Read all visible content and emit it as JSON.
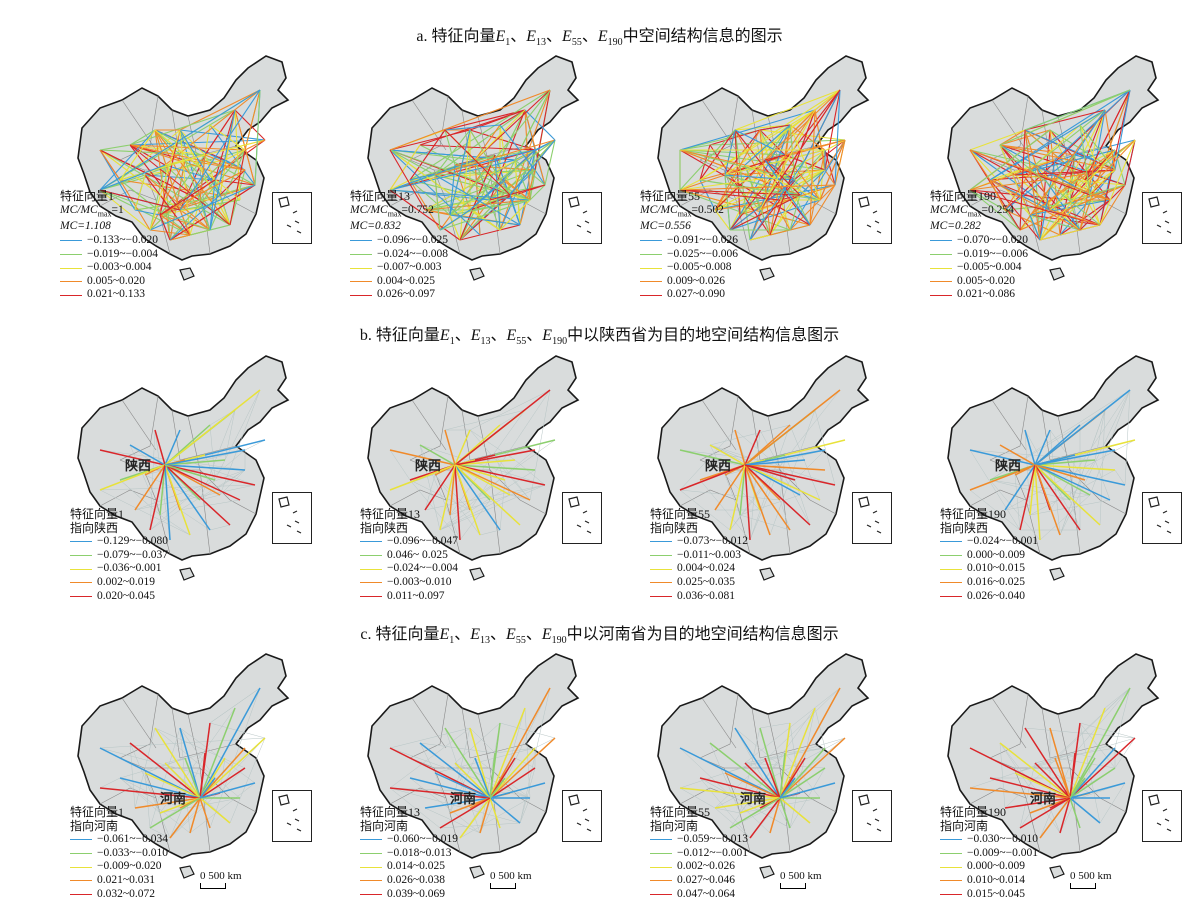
{
  "colors": {
    "class1": "#3a9ad9",
    "class2": "#8ccf6e",
    "class3": "#e8e23a",
    "class4": "#f08a2a",
    "class5": "#d9262a",
    "land": "#d9dcdc",
    "border": "#1a1a1a"
  },
  "sections": [
    {
      "title_prefix": "a. 特征向量",
      "title_suffix": "中空间结构信息的图示",
      "panels": [
        {
          "title": "特征向量1",
          "stat1_prefix": "MC/MC",
          "stat1_sub": "max",
          "stat1_value": "=1",
          "stat2": "MC=1.108",
          "legend": [
            "−0.133~−0.020",
            "−0.019~−0.004",
            "−0.003~0.004",
            "0.005~0.020",
            "0.021~0.133"
          ]
        },
        {
          "title": "特征向量13",
          "stat1_prefix": "MC/MC",
          "stat1_sub": "max",
          "stat1_value": "=0.752",
          "stat2": "MC=0.832",
          "legend": [
            "−0.096~−0.025",
            "−0.024~−0.008",
            "−0.007~0.003",
            "0.004~0.025",
            "0.026~0.097"
          ]
        },
        {
          "title": "特征向量55",
          "stat1_prefix": "MC/MC",
          "stat1_sub": "max",
          "stat1_value": "=0.502",
          "stat2": "MC=0.556",
          "legend": [
            "−0.091~−0.026",
            "−0.025~−0.006",
            "−0.005~0.008",
            "0.009~0.026",
            "0.027~0.090"
          ]
        },
        {
          "title": "特征向量190",
          "stat1_prefix": "MC/MC",
          "stat1_sub": "max",
          "stat1_value": "=0.254",
          "stat2": "MC=0.282",
          "legend": [
            "−0.070~−0.020",
            "−0.019~−0.006",
            "−0.005~0.004",
            "0.005~0.020",
            "0.021~0.086"
          ]
        }
      ]
    },
    {
      "title_prefix": "b. 特征向量",
      "title_suffix": "中以陕西省为目的地空间结构信息图示",
      "province": "陕西",
      "panels": [
        {
          "title": "特征向量1",
          "subtitle": "指向陕西",
          "legend": [
            "−0.129~−0.080",
            "−0.079~−0.037",
            "−0.036~0.001",
            "0.002~0.019",
            "0.020~0.045"
          ]
        },
        {
          "title": "特征向量13",
          "subtitle": "指向陕西",
          "legend": [
            "−0.096~−0.047",
            "0.046~ 0.025",
            "−0.024~−0.004",
            "−0.003~0.010",
            "0.011~0.097"
          ]
        },
        {
          "title": "特征向量55",
          "subtitle": "指向陕西",
          "legend": [
            "−0.073~−0.012",
            "−0.011~0.003",
            "0.004~0.024",
            "0.025~0.035",
            "0.036~0.081"
          ]
        },
        {
          "title": "特征向量190",
          "subtitle": "指向陕西",
          "legend": [
            "−0.024~−0.001",
            "0.000~0.009",
            "0.010~0.015",
            "0.016~0.025",
            "0.026~0.040"
          ]
        }
      ]
    },
    {
      "title_prefix": "c. 特征向量",
      "title_suffix": "中以河南省为目的地空间结构信息图示",
      "province": "河南",
      "scale_label": "0  500 km",
      "panels": [
        {
          "title": "特征向量1",
          "subtitle": "指向河南",
          "legend": [
            "−0.061~−0.034",
            "−0.033~−0.010",
            "−0.009~0.020",
            "0.021~0.031",
            "0.032~0.072"
          ]
        },
        {
          "title": "特征向量13",
          "subtitle": "指向河南",
          "legend": [
            "−0.060~−0.019",
            "−0.018~0.013",
            "0.014~0.025",
            "0.026~0.038",
            "0.039~0.069"
          ]
        },
        {
          "title": "特征向量55",
          "subtitle": "指向河南",
          "legend": [
            "−0.059~−0.013",
            "−0.012~−0.001",
            "0.002~0.026",
            "0.027~0.046",
            "0.047~0.064"
          ]
        },
        {
          "title": "特征向量190",
          "subtitle": "指向河南",
          "legend": [
            "−0.030~−0.010",
            "−0.009~−0.001",
            "0.000~0.009",
            "0.010~0.014",
            "0.015~0.045"
          ]
        }
      ]
    }
  ],
  "eigen": {
    "e": "E",
    "subs": [
      "1",
      "13",
      "55",
      "190"
    ],
    "sep": "、"
  }
}
